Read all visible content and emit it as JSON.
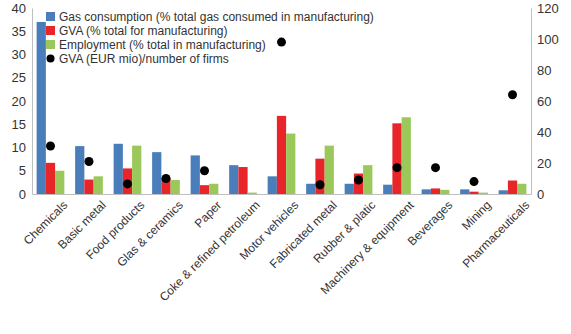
{
  "chart_data": {
    "type": "bar",
    "categories": [
      "Chemicals",
      "Basic metal",
      "Food products",
      "Glas & ceramics",
      "Paper",
      "Coke & refined petroleum",
      "Motor vehicles",
      "Fabricated metal",
      "Rubber & platic",
      "Machinery & equipment",
      "Beverages",
      "Mining",
      "Pharmaceuticals"
    ],
    "series": [
      {
        "name": "Gas consumption (% total gas consumed in manufacturing)",
        "type": "bar",
        "color": "#4a7ebb",
        "values": [
          37,
          10.3,
          10.8,
          9,
          8.3,
          6.2,
          3.8,
          2.2,
          2.2,
          2,
          1,
          1,
          0.8
        ]
      },
      {
        "name": "GVA (% total for manufacturing)",
        "type": "bar",
        "color": "#e8262a",
        "values": [
          6.7,
          3.1,
          5.5,
          3.5,
          1.9,
          5.8,
          16.8,
          7.6,
          4.4,
          15.2,
          1.2,
          0.5,
          2.9
        ]
      },
      {
        "name": "Employment (% total in manufacturing)",
        "type": "bar",
        "color": "#9bc85b",
        "values": [
          5,
          3.8,
          10.4,
          3,
          2.2,
          0.3,
          13,
          10.4,
          6.2,
          16.5,
          0.9,
          0.3,
          2.2
        ]
      },
      {
        "name": "GVA (EUR mio)/number of firms",
        "type": "scatter",
        "axis": "y2",
        "marker": "circle",
        "color": "#000000",
        "values": [
          31,
          21,
          6.5,
          10,
          15,
          null,
          98,
          6,
          9,
          17,
          17,
          8,
          64
        ]
      }
    ],
    "ylim": [
      0,
      40
    ],
    "yticks": [
      0,
      5,
      10,
      15,
      20,
      25,
      30,
      35,
      40
    ],
    "y2lim": [
      0,
      120
    ],
    "y2ticks": [
      0,
      20,
      40,
      60,
      80,
      100,
      120
    ],
    "legend": "top-left",
    "grid": false
  }
}
